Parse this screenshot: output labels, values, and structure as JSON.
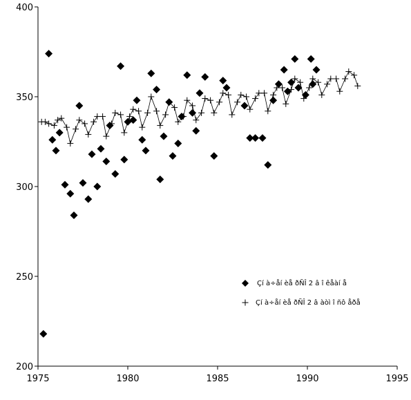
{
  "chart_data": {
    "type": "scatter",
    "xlim": [
      1975,
      1995
    ],
    "ylim": [
      200,
      400
    ],
    "xticks": [
      "1975",
      "1980",
      "1985",
      "1990",
      "1995"
    ],
    "yticks": [
      "200",
      "250",
      "300",
      "350",
      "400"
    ],
    "grid": false,
    "legend_position": "bottom-right",
    "series": [
      {
        "name": "Çí à÷åí èå ðÑÎ 2 â î êåàí å",
        "marker": "diamond",
        "color": "#000000",
        "x": [
          1975.3,
          1975.6,
          1975.8,
          1976.0,
          1976.2,
          1976.5,
          1976.8,
          1977.0,
          1977.3,
          1977.5,
          1977.8,
          1978.0,
          1978.3,
          1978.5,
          1978.8,
          1979.0,
          1979.3,
          1979.6,
          1979.8,
          1980.0,
          1980.3,
          1980.5,
          1980.8,
          1981.0,
          1981.3,
          1981.6,
          1981.8,
          1982.0,
          1982.3,
          1982.5,
          1982.8,
          1983.0,
          1983.3,
          1983.6,
          1983.8,
          1984.0,
          1984.3,
          1984.8,
          1985.3,
          1985.5,
          1986.5,
          1986.8,
          1987.1,
          1987.5,
          1987.8,
          1988.1,
          1988.4,
          1988.7,
          1988.9,
          1989.1,
          1989.3,
          1989.5,
          1989.9,
          1990.2,
          1990.3,
          1990.5
        ],
        "y": [
          218,
          374,
          326,
          320,
          330,
          301,
          296,
          284,
          345,
          302,
          293,
          318,
          300,
          321,
          314,
          334,
          307,
          367,
          315,
          336,
          337,
          348,
          326,
          320,
          363,
          354,
          304,
          328,
          347,
          317,
          324,
          339,
          362,
          341,
          331,
          352,
          361,
          317,
          359,
          355,
          345,
          327,
          327,
          327,
          312,
          348,
          357,
          365,
          353,
          358,
          371,
          355,
          351,
          371,
          357,
          365
        ]
      },
      {
        "name": "Çí à÷åí èå ðÑÎ 2 â àòì î ñô åðå",
        "marker": "plus",
        "color": "#000000",
        "x": [
          1975.2,
          1975.4,
          1975.6,
          1975.9,
          1976.1,
          1976.3,
          1976.6,
          1976.8,
          1977.1,
          1977.3,
          1977.6,
          1977.8,
          1978.1,
          1978.3,
          1978.6,
          1978.8,
          1979.1,
          1979.3,
          1979.6,
          1979.8,
          1980.1,
          1980.3,
          1980.6,
          1980.8,
          1981.1,
          1981.3,
          1981.6,
          1981.8,
          1982.1,
          1982.3,
          1982.6,
          1982.8,
          1983.1,
          1983.3,
          1983.6,
          1983.8,
          1984.1,
          1984.3,
          1984.6,
          1984.8,
          1985.1,
          1985.3,
          1985.6,
          1985.8,
          1986.1,
          1986.3,
          1986.6,
          1986.8,
          1987.1,
          1987.3,
          1987.6,
          1987.8,
          1988.1,
          1988.3,
          1988.6,
          1988.8,
          1989.1,
          1989.3,
          1989.6,
          1989.8,
          1990.1,
          1990.3,
          1990.6,
          1990.8,
          1991.1,
          1991.3,
          1991.6,
          1991.8,
          1992.1,
          1992.3,
          1992.6,
          1992.8
        ],
        "y": [
          336,
          336,
          335,
          334,
          337,
          338,
          333,
          324,
          332,
          337,
          335,
          329,
          336,
          339,
          339,
          328,
          335,
          341,
          340,
          330,
          339,
          343,
          342,
          333,
          341,
          350,
          342,
          334,
          340,
          347,
          344,
          336,
          339,
          348,
          345,
          337,
          341,
          349,
          348,
          341,
          347,
          352,
          351,
          340,
          347,
          351,
          350,
          343,
          349,
          352,
          352,
          342,
          351,
          355,
          355,
          346,
          354,
          360,
          358,
          349,
          355,
          360,
          358,
          351,
          357,
          360,
          360,
          353,
          360,
          364,
          362,
          356
        ]
      }
    ]
  }
}
